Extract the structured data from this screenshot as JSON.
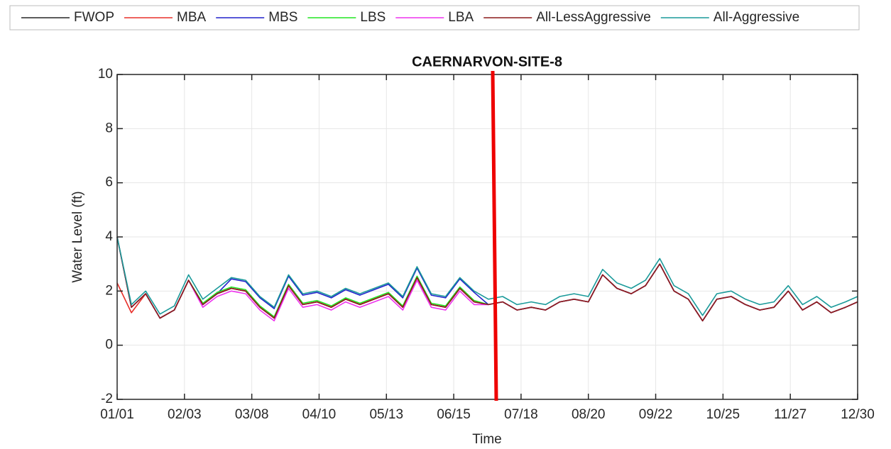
{
  "chart_data": {
    "type": "line",
    "title": "CAERNARVON-SITE-8",
    "xlabel": "Time",
    "ylabel": "Water Level (ft)",
    "x": [
      0,
      7,
      14,
      21,
      28,
      35,
      42,
      49,
      56,
      63,
      70,
      77,
      84,
      91,
      98,
      105,
      112,
      119,
      126,
      133,
      140,
      147,
      154,
      161,
      168,
      175,
      182,
      189,
      196,
      203,
      210,
      217,
      224,
      231,
      238,
      245,
      252,
      259,
      266,
      273,
      280,
      287,
      294,
      301,
      308,
      315,
      322,
      329,
      336,
      343,
      350,
      357,
      363
    ],
    "xlim": [
      0,
      363
    ],
    "xticks": [
      {
        "value": 0,
        "label": "01/01"
      },
      {
        "value": 33,
        "label": "02/03"
      },
      {
        "value": 66,
        "label": "03/08"
      },
      {
        "value": 99,
        "label": "04/10"
      },
      {
        "value": 132,
        "label": "05/13"
      },
      {
        "value": 165,
        "label": "06/15"
      },
      {
        "value": 198,
        "label": "07/18"
      },
      {
        "value": 231,
        "label": "08/20"
      },
      {
        "value": 264,
        "label": "09/22"
      },
      {
        "value": 297,
        "label": "10/25"
      },
      {
        "value": 330,
        "label": "11/27"
      },
      {
        "value": 363,
        "label": "12/30"
      }
    ],
    "ylim": [
      -2,
      10
    ],
    "yticks": [
      -2,
      0,
      2,
      4,
      6,
      8,
      10
    ],
    "grid": true,
    "legend": "top",
    "series": [
      {
        "name": "FWOP",
        "color": "#262626",
        "values": [
          4.0,
          1.4,
          1.9,
          1.0,
          1.3,
          2.4,
          1.5,
          1.9,
          2.1,
          2.0,
          1.4,
          1.0,
          2.2,
          1.5,
          1.6,
          1.4,
          1.7,
          1.5,
          1.7,
          1.9,
          1.4,
          2.5,
          1.5,
          1.4,
          2.1,
          1.6,
          1.5,
          1.6,
          1.3,
          1.4,
          1.3,
          1.6,
          1.7,
          1.6,
          2.6,
          2.1,
          1.9,
          2.2,
          3.0,
          2.0,
          1.7,
          0.9,
          1.7,
          1.8,
          1.5,
          1.3,
          1.4,
          2.0,
          1.3,
          1.6,
          1.2,
          1.4,
          1.6
        ]
      },
      {
        "name": "MBA",
        "color": "#e8302a",
        "values": [
          2.3,
          1.2,
          1.9,
          1.0,
          1.3,
          2.4,
          1.5,
          1.9,
          2.1,
          2.0,
          1.4,
          1.0,
          2.2,
          1.5,
          1.6,
          1.4,
          1.7,
          1.5,
          1.7,
          1.9,
          1.4,
          2.5,
          1.5,
          1.4,
          2.1,
          1.6,
          1.5,
          1.6,
          1.3,
          1.4,
          1.3,
          1.6,
          1.7,
          1.6,
          2.6,
          2.1,
          1.9,
          2.2,
          3.0,
          2.0,
          1.7,
          0.9,
          1.7,
          1.8,
          1.5,
          1.3,
          1.4,
          2.0,
          1.3,
          1.6,
          1.2,
          1.4,
          1.6
        ]
      },
      {
        "name": "MBS",
        "color": "#2222cc",
        "values": [
          4.0,
          1.4,
          1.9,
          1.0,
          1.3,
          2.4,
          1.5,
          1.9,
          2.45,
          2.35,
          1.75,
          1.35,
          2.55,
          1.85,
          1.95,
          1.75,
          2.05,
          1.85,
          2.05,
          2.25,
          1.75,
          2.85,
          1.85,
          1.75,
          2.45,
          1.95,
          1.5,
          1.6,
          1.3,
          1.4,
          1.3,
          1.6,
          1.7,
          1.6,
          2.6,
          2.1,
          1.9,
          2.2,
          3.0,
          2.0,
          1.7,
          0.9,
          1.7,
          1.8,
          1.5,
          1.3,
          1.4,
          2.0,
          1.3,
          1.6,
          1.2,
          1.4,
          1.6
        ]
      },
      {
        "name": "LBS",
        "color": "#22e622",
        "values": [
          4.0,
          1.4,
          1.9,
          1.0,
          1.3,
          2.4,
          1.55,
          1.95,
          2.15,
          2.05,
          1.45,
          1.05,
          2.25,
          1.55,
          1.65,
          1.45,
          1.75,
          1.55,
          1.75,
          1.95,
          1.45,
          2.55,
          1.55,
          1.45,
          2.15,
          1.65,
          1.5,
          1.6,
          1.3,
          1.4,
          1.3,
          1.6,
          1.7,
          1.6,
          2.6,
          2.1,
          1.9,
          2.2,
          3.0,
          2.0,
          1.7,
          0.9,
          1.7,
          1.8,
          1.5,
          1.3,
          1.4,
          2.0,
          1.3,
          1.6,
          1.2,
          1.4,
          1.6
        ]
      },
      {
        "name": "LBA",
        "color": "#ee33ee",
        "values": [
          4.0,
          1.4,
          1.9,
          1.0,
          1.3,
          2.4,
          1.4,
          1.8,
          2.0,
          1.9,
          1.3,
          0.9,
          2.1,
          1.4,
          1.5,
          1.3,
          1.6,
          1.4,
          1.6,
          1.8,
          1.3,
          2.4,
          1.4,
          1.3,
          2.0,
          1.5,
          1.5,
          1.6,
          1.3,
          1.4,
          1.3,
          1.6,
          1.7,
          1.6,
          2.6,
          2.1,
          1.9,
          2.2,
          3.0,
          2.0,
          1.7,
          0.9,
          1.7,
          1.8,
          1.5,
          1.3,
          1.4,
          2.0,
          1.3,
          1.6,
          1.2,
          1.4,
          1.6
        ]
      },
      {
        "name": "All-LessAggressive",
        "color": "#8b1a1a",
        "values": [
          4.0,
          1.4,
          1.9,
          1.0,
          1.3,
          2.4,
          1.5,
          1.9,
          2.1,
          2.0,
          1.4,
          1.0,
          2.2,
          1.5,
          1.6,
          1.4,
          1.7,
          1.5,
          1.7,
          1.9,
          1.4,
          2.5,
          1.5,
          1.4,
          2.1,
          1.6,
          1.5,
          1.6,
          1.3,
          1.4,
          1.3,
          1.6,
          1.7,
          1.6,
          2.6,
          2.1,
          1.9,
          2.2,
          3.0,
          2.0,
          1.7,
          0.9,
          1.7,
          1.8,
          1.5,
          1.3,
          1.4,
          2.0,
          1.3,
          1.6,
          1.2,
          1.4,
          1.6
        ]
      },
      {
        "name": "All-Aggressive",
        "color": "#1a9a9a",
        "values": [
          4.0,
          1.5,
          2.0,
          1.15,
          1.45,
          2.6,
          1.7,
          2.1,
          2.5,
          2.4,
          1.8,
          1.4,
          2.6,
          1.9,
          2.0,
          1.8,
          2.1,
          1.9,
          2.1,
          2.3,
          1.8,
          2.9,
          1.9,
          1.8,
          2.5,
          2.0,
          1.7,
          1.8,
          1.5,
          1.6,
          1.5,
          1.8,
          1.9,
          1.8,
          2.8,
          2.3,
          2.1,
          2.4,
          3.2,
          2.2,
          1.9,
          1.1,
          1.9,
          2.0,
          1.7,
          1.5,
          1.6,
          2.2,
          1.5,
          1.8,
          1.4,
          1.6,
          1.8
        ]
      }
    ]
  }
}
